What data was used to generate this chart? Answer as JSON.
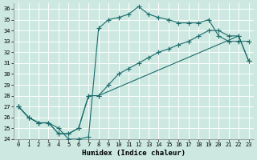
{
  "xlabel": "Humidex (Indice chaleur)",
  "xlim": [
    -0.5,
    23.5
  ],
  "ylim": [
    24,
    36.5
  ],
  "yticks": [
    24,
    25,
    26,
    27,
    28,
    29,
    30,
    31,
    32,
    33,
    34,
    35,
    36
  ],
  "xticks": [
    0,
    1,
    2,
    3,
    4,
    5,
    6,
    7,
    8,
    9,
    10,
    11,
    12,
    13,
    14,
    15,
    16,
    17,
    18,
    19,
    20,
    21,
    22,
    23
  ],
  "bg_color": "#cce8e0",
  "grid_color": "#ffffff",
  "line_color": "#1a6b6b",
  "line1_x": [
    0,
    1,
    2,
    3,
    4,
    5,
    6,
    7,
    8,
    9,
    10,
    11,
    12,
    13,
    14,
    15,
    16,
    17,
    18,
    19,
    20,
    21,
    22,
    23
  ],
  "line1_y": [
    27.0,
    26.0,
    25.5,
    25.5,
    25.0,
    24.0,
    24.0,
    24.2,
    34.2,
    35.0,
    35.2,
    35.5,
    36.2,
    35.5,
    35.2,
    35.0,
    34.7,
    34.7,
    34.7,
    35.0,
    33.5,
    33.0,
    33.0,
    33.0
  ],
  "line2_x": [
    0,
    1,
    2,
    3,
    4,
    5,
    6,
    7,
    8,
    22,
    23
  ],
  "line2_y": [
    27.0,
    26.0,
    25.5,
    25.5,
    24.5,
    24.5,
    25.0,
    28.0,
    28.0,
    33.5,
    31.2
  ],
  "line3_x": [
    0,
    1,
    2,
    3,
    4,
    5,
    6,
    7,
    8,
    9,
    10,
    11,
    12,
    13,
    14,
    15,
    16,
    17,
    18,
    19,
    20,
    21,
    22,
    23
  ],
  "line3_y": [
    27.0,
    26.0,
    25.5,
    25.5,
    24.5,
    24.5,
    25.0,
    28.0,
    28.0,
    29.0,
    30.0,
    30.5,
    31.0,
    31.5,
    32.0,
    32.3,
    32.7,
    33.0,
    33.5,
    34.0,
    34.0,
    33.5,
    33.5,
    31.2
  ],
  "marker_size": 2.5,
  "linewidth": 0.8
}
